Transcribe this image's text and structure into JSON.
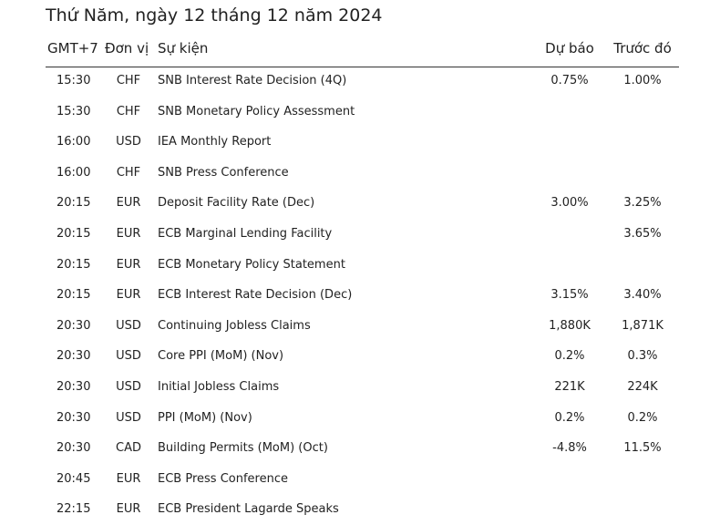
{
  "title": "Thứ Năm, ngày 12 tháng 12 năm 2024",
  "columns": {
    "time": "GMT+7",
    "currency": "Đơn vị",
    "event": "Sự kiện",
    "forecast": "Dự báo",
    "previous": "Trước đó"
  },
  "rows": [
    {
      "time": "15:30",
      "currency": "CHF",
      "event": "SNB Interest Rate Decision (4Q)",
      "forecast": "0.75%",
      "previous": "1.00%"
    },
    {
      "time": "15:30",
      "currency": "CHF",
      "event": "SNB Monetary Policy Assessment",
      "forecast": "",
      "previous": ""
    },
    {
      "time": "16:00",
      "currency": "USD",
      "event": "IEA Monthly Report",
      "forecast": "",
      "previous": ""
    },
    {
      "time": "16:00",
      "currency": "CHF",
      "event": "SNB Press Conference",
      "forecast": "",
      "previous": ""
    },
    {
      "time": "20:15",
      "currency": "EUR",
      "event": "Deposit Facility Rate (Dec)",
      "forecast": "3.00%",
      "previous": "3.25%"
    },
    {
      "time": "20:15",
      "currency": "EUR",
      "event": "ECB Marginal Lending Facility",
      "forecast": "",
      "previous": "3.65%"
    },
    {
      "time": "20:15",
      "currency": "EUR",
      "event": "ECB Monetary Policy Statement",
      "forecast": "",
      "previous": ""
    },
    {
      "time": "20:15",
      "currency": "EUR",
      "event": "ECB Interest Rate Decision (Dec)",
      "forecast": "3.15%",
      "previous": "3.40%"
    },
    {
      "time": "20:30",
      "currency": "USD",
      "event": "Continuing Jobless Claims",
      "forecast": "1,880K",
      "previous": "1,871K"
    },
    {
      "time": "20:30",
      "currency": "USD",
      "event": "Core PPI (MoM) (Nov)",
      "forecast": "0.2%",
      "previous": "0.3%"
    },
    {
      "time": "20:30",
      "currency": "USD",
      "event": "Initial Jobless Claims",
      "forecast": "221K",
      "previous": "224K"
    },
    {
      "time": "20:30",
      "currency": "USD",
      "event": "PPI (MoM) (Nov)",
      "forecast": "0.2%",
      "previous": "0.2%"
    },
    {
      "time": "20:30",
      "currency": "CAD",
      "event": "Building Permits (MoM) (Oct)",
      "forecast": "-4.8%",
      "previous": "11.5%"
    },
    {
      "time": "20:45",
      "currency": "EUR",
      "event": "ECB Press Conference",
      "forecast": "",
      "previous": ""
    },
    {
      "time": "22:15",
      "currency": "EUR",
      "event": "ECB President Lagarde Speaks",
      "forecast": "",
      "previous": ""
    }
  ]
}
